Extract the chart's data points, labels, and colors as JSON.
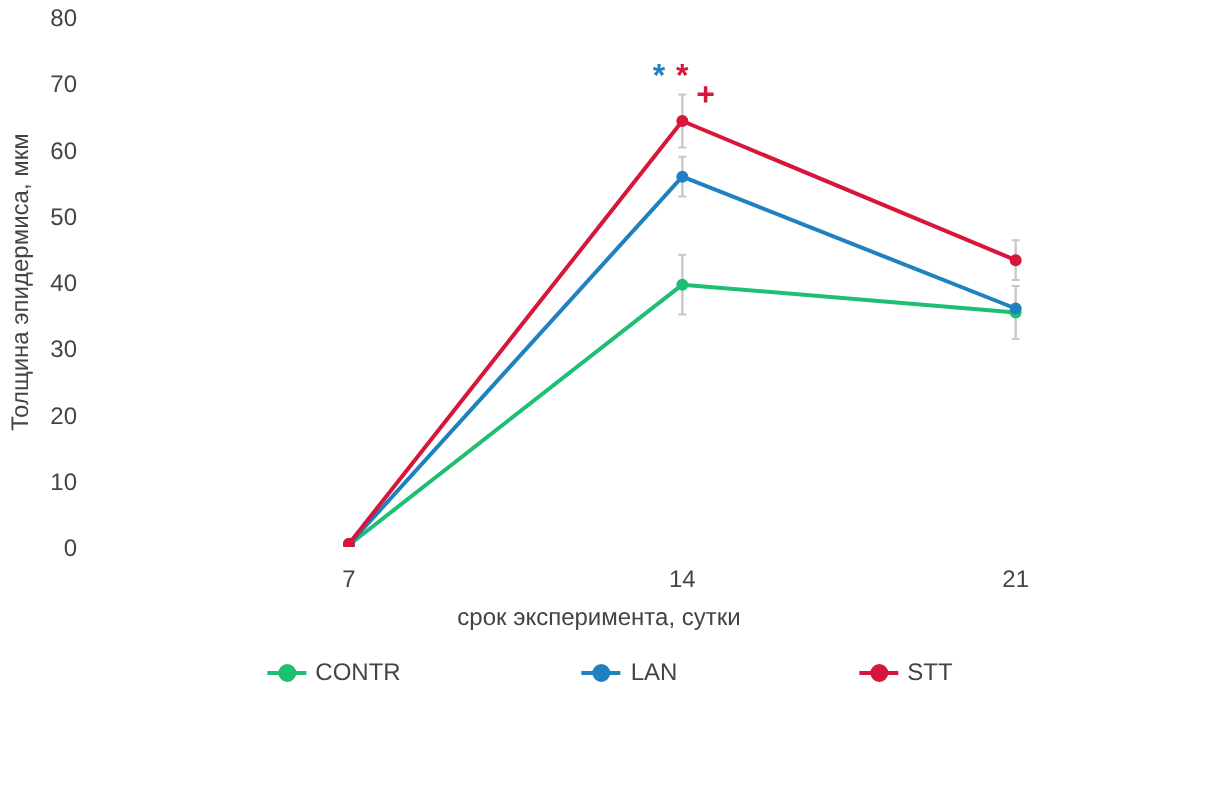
{
  "chart_data": {
    "type": "line",
    "xlabel": "срок эксперимента, сутки",
    "ylabel": "Толщина эпидермиса, мкм",
    "categories": [
      "7",
      "14",
      "21"
    ],
    "series": [
      {
        "name": "CONTR",
        "color": "#1dbf73",
        "values": [
          0.3,
          39.6,
          35.4
        ],
        "errors": [
          null,
          4.5,
          4
        ]
      },
      {
        "name": "LAN",
        "color": "#1f82c0",
        "values": [
          0.4,
          55.9,
          36
        ],
        "errors": [
          null,
          3,
          null
        ]
      },
      {
        "name": "STT",
        "color": "#d6163a",
        "values": [
          0.5,
          64.3,
          43.3
        ],
        "errors": [
          null,
          4,
          3
        ]
      }
    ],
    "annotations": [
      "*",
      "*",
      "+"
    ],
    "ylim": [
      0,
      80
    ],
    "yticks": [
      0,
      10,
      20,
      30,
      40,
      50,
      60,
      70,
      80
    ],
    "grid": false,
    "legend": "bottom",
    "marker": "circle",
    "line_style": "solid"
  }
}
